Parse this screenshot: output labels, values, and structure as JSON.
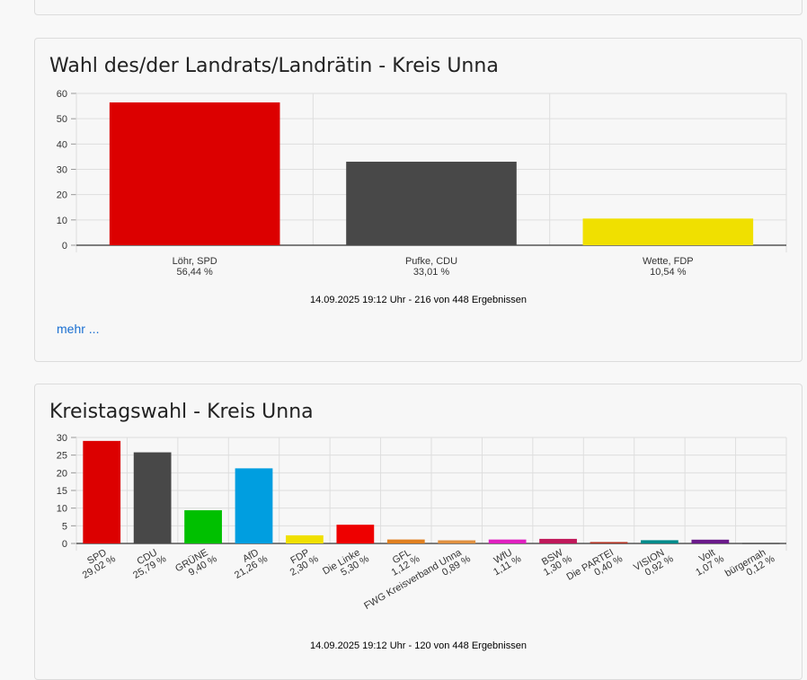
{
  "section1": {
    "title": "Wahl des/der Landrats/Landrätin - Kreis Unna",
    "footer": "14.09.2025 19:12 Uhr - 216 von 448 Ergebnissen",
    "more_link": "mehr ..."
  },
  "section2": {
    "title": "Kreistagswahl - Kreis Unna",
    "footer": "14.09.2025 19:12 Uhr - 120 von 448 Ergebnissen"
  },
  "chart_data": [
    {
      "type": "bar",
      "title": "Wahl des/der Landrats/Landrätin - Kreis Unna",
      "categories": [
        "Löhr, SPD",
        "Pufke, CDU",
        "Wette, FDP"
      ],
      "value_labels": [
        "56,44 %",
        "33,01 %",
        "10,54 %"
      ],
      "values": [
        56.44,
        33.01,
        10.54
      ],
      "colors": [
        "#dc0000",
        "#484848",
        "#f0e000"
      ],
      "ylim": [
        0,
        60
      ],
      "yticks": [
        0,
        10,
        20,
        30,
        40,
        50,
        60
      ],
      "grid": true
    },
    {
      "type": "bar",
      "title": "Kreistagswahl - Kreis Unna",
      "categories": [
        "SPD",
        "CDU",
        "GRÜNE",
        "AfD",
        "FDP",
        "Die Linke",
        "GFL",
        "FWG Kreisverband Unna",
        "WfU",
        "BSW",
        "Die PARTEI",
        "VISION",
        "Volt",
        "bürgernah"
      ],
      "value_labels": [
        "29,02 %",
        "25,79 %",
        "9,40 %",
        "21,26 %",
        "2,30 %",
        "5,30 %",
        "1,12 %",
        "0,89 %",
        "1,11 %",
        "1,30 %",
        "0,40 %",
        "0,92 %",
        "1,07 %",
        "0,12 %"
      ],
      "values": [
        29.02,
        25.79,
        9.4,
        21.26,
        2.3,
        5.3,
        1.12,
        0.89,
        1.11,
        1.3,
        0.4,
        0.92,
        1.07,
        0.12
      ],
      "colors": [
        "#dc0000",
        "#484848",
        "#00c000",
        "#009ee0",
        "#f0e000",
        "#ee0000",
        "#e08020",
        "#e09040",
        "#e020c0",
        "#c0185a",
        "#b03020",
        "#008a8a",
        "#6a1a8a",
        "#404040"
      ],
      "ylim": [
        0,
        30
      ],
      "yticks": [
        0,
        5,
        10,
        15,
        20,
        25,
        30
      ],
      "grid": true
    }
  ]
}
